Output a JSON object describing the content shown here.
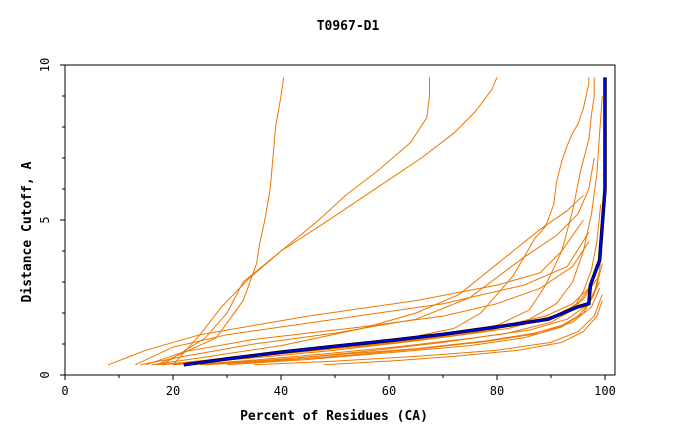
{
  "chart_data": {
    "type": "line",
    "title": "T0967-D1",
    "xlabel": "Percent of Residues (CA)",
    "ylabel": "Distance Cutoff, A",
    "xlim": [
      0,
      100
    ],
    "ylim": [
      0,
      10
    ],
    "x_ticks": [
      "0",
      "20",
      "40",
      "60",
      "80",
      "100"
    ],
    "y_ticks": [
      "0",
      "5",
      "10"
    ],
    "grid": false,
    "colors": {
      "other": "#ee7700",
      "highlight": "#0000ee",
      "highlight_edge": "#000000"
    },
    "highlight": {
      "x": [
        22,
        30,
        40,
        50,
        60,
        70,
        80,
        89.5,
        95,
        97,
        97.3,
        99,
        100,
        100
      ],
      "y": [
        0.33,
        0.52,
        0.74,
        0.93,
        1.11,
        1.31,
        1.55,
        1.8,
        2.2,
        2.3,
        2.9,
        3.7,
        6.0,
        9.6
      ]
    },
    "series": [
      {
        "x": [
          17,
          28,
          33,
          35.5,
          36,
          37,
          38,
          38.5,
          39,
          40,
          40.5
        ],
        "y": [
          0.33,
          1.2,
          2.4,
          3.6,
          4.2,
          5.0,
          6.0,
          7.0,
          8.0,
          9.0,
          9.6
        ]
      },
      {
        "x": [
          18,
          26,
          30,
          33,
          40,
          47,
          52,
          58,
          64,
          67,
          67.5,
          67.5
        ],
        "y": [
          0.33,
          1.2,
          2.0,
          3.0,
          4.0,
          5.0,
          5.8,
          6.6,
          7.5,
          8.3,
          9.0,
          9.6
        ]
      },
      {
        "x": [
          20,
          25,
          29,
          34,
          40,
          48,
          54,
          60,
          66,
          72,
          76,
          79,
          80
        ],
        "y": [
          0.33,
          1.3,
          2.2,
          3.1,
          4.0,
          4.9,
          5.6,
          6.3,
          7.0,
          7.8,
          8.5,
          9.2,
          9.6
        ]
      },
      {
        "x": [
          8,
          15,
          25,
          45,
          65,
          80,
          88,
          92,
          96
        ],
        "y": [
          0.33,
          0.8,
          1.3,
          1.9,
          2.4,
          2.9,
          3.3,
          4.0,
          5.0
        ]
      },
      {
        "x": [
          13,
          20,
          30,
          50,
          70,
          85,
          93,
          97
        ],
        "y": [
          0.33,
          0.9,
          1.3,
          1.8,
          2.3,
          2.9,
          3.5,
          4.6
        ]
      },
      {
        "x": [
          15,
          22,
          35,
          55,
          70,
          80,
          88,
          94,
          97
        ],
        "y": [
          0.33,
          0.75,
          1.15,
          1.55,
          1.9,
          2.3,
          2.8,
          3.5,
          4.3
        ]
      },
      {
        "x": [
          16,
          25,
          40,
          55,
          65,
          73,
          78,
          83,
          88,
          93,
          96
        ],
        "y": [
          0.33,
          0.55,
          0.95,
          1.5,
          2.0,
          2.6,
          3.3,
          4.0,
          4.7,
          5.3,
          5.8
        ]
      },
      {
        "x": [
          14,
          22,
          35,
          50,
          65,
          75,
          85,
          91,
          95,
          97,
          98
        ],
        "y": [
          0.33,
          0.6,
          1.0,
          1.35,
          1.8,
          2.5,
          3.8,
          4.5,
          5.2,
          6.0,
          7.0
        ]
      },
      {
        "x": [
          18,
          30,
          45,
          60,
          72,
          80,
          86,
          89,
          92,
          94,
          95.5,
          97,
          97.5,
          98,
          98
        ],
        "y": [
          0.33,
          0.55,
          0.85,
          1.1,
          1.35,
          1.6,
          2.1,
          2.9,
          4.0,
          5.3,
          6.6,
          7.6,
          8.4,
          9.0,
          9.6
        ]
      },
      {
        "x": [
          20,
          30,
          40,
          55,
          65,
          72,
          77,
          80,
          83,
          85,
          87,
          89,
          90.5,
          91,
          92,
          93,
          94,
          95,
          96,
          96.5,
          97,
          97
        ],
        "y": [
          0.33,
          0.5,
          0.75,
          1.0,
          1.25,
          1.5,
          2.0,
          2.6,
          3.2,
          3.8,
          4.4,
          4.8,
          5.5,
          6.2,
          6.9,
          7.4,
          7.8,
          8.1,
          8.6,
          9.0,
          9.4,
          9.6
        ]
      },
      {
        "x": [
          20,
          35,
          50,
          65,
          78,
          86,
          91,
          94,
          96,
          97.5,
          98.5,
          99,
          99.5
        ],
        "y": [
          0.33,
          0.55,
          0.8,
          1.1,
          1.4,
          1.8,
          2.3,
          3.0,
          4.0,
          5.2,
          6.5,
          7.8,
          9.0
        ]
      },
      {
        "x": [
          25,
          40,
          55,
          70,
          82,
          90,
          94,
          96,
          97.5,
          98.5,
          99.2
        ],
        "y": [
          0.33,
          0.5,
          0.75,
          1.05,
          1.35,
          1.7,
          2.1,
          2.7,
          3.4,
          4.3,
          5.5
        ]
      },
      {
        "x": [
          30,
          45,
          60,
          75,
          85,
          92,
          96,
          98,
          99,
          99.5
        ],
        "y": [
          0.33,
          0.5,
          0.72,
          0.95,
          1.2,
          1.55,
          2.0,
          2.6,
          3.4,
          4.4
        ]
      },
      {
        "x": [
          22,
          35,
          50,
          65,
          78,
          87,
          92,
          95,
          97,
          98.5,
          99.5
        ],
        "y": [
          0.33,
          0.45,
          0.65,
          0.85,
          1.1,
          1.35,
          1.6,
          1.9,
          2.3,
          2.9,
          3.6
        ]
      },
      {
        "x": [
          35,
          50,
          65,
          80,
          90,
          95,
          98,
          99.5
        ],
        "y": [
          0.33,
          0.45,
          0.6,
          0.8,
          1.05,
          1.4,
          1.9,
          2.6
        ]
      },
      {
        "x": [
          48,
          60,
          72,
          84,
          92,
          96,
          98.5,
          99.5
        ],
        "y": [
          0.33,
          0.45,
          0.6,
          0.8,
          1.05,
          1.4,
          1.9,
          2.4
        ]
      },
      {
        "x": [
          20,
          30,
          42,
          55,
          68,
          80,
          89,
          94,
          97,
          98.5
        ],
        "y": [
          0.33,
          0.5,
          0.72,
          0.98,
          1.25,
          1.55,
          1.9,
          2.3,
          2.8,
          3.6
        ]
      },
      {
        "x": [
          17,
          27,
          40,
          55,
          70,
          82,
          90,
          95,
          97.5
        ],
        "y": [
          0.33,
          0.48,
          0.7,
          0.96,
          1.22,
          1.5,
          1.85,
          2.3,
          2.9
        ]
      },
      {
        "x": [
          23,
          35,
          48,
          62,
          75,
          86,
          93,
          97,
          99
        ],
        "y": [
          0.33,
          0.48,
          0.68,
          0.92,
          1.18,
          1.45,
          1.8,
          2.3,
          3.0
        ]
      },
      {
        "x": [
          26,
          38,
          52,
          66,
          78,
          88,
          94,
          97.5,
          99
        ],
        "y": [
          0.33,
          0.45,
          0.63,
          0.85,
          1.08,
          1.35,
          1.7,
          2.2,
          2.8
        ]
      },
      {
        "x": [
          18,
          30,
          45,
          60,
          73,
          84,
          92,
          96,
          98.5
        ],
        "y": [
          0.33,
          0.52,
          0.76,
          1.02,
          1.3,
          1.62,
          1.98,
          2.45,
          3.1
        ]
      }
    ]
  }
}
